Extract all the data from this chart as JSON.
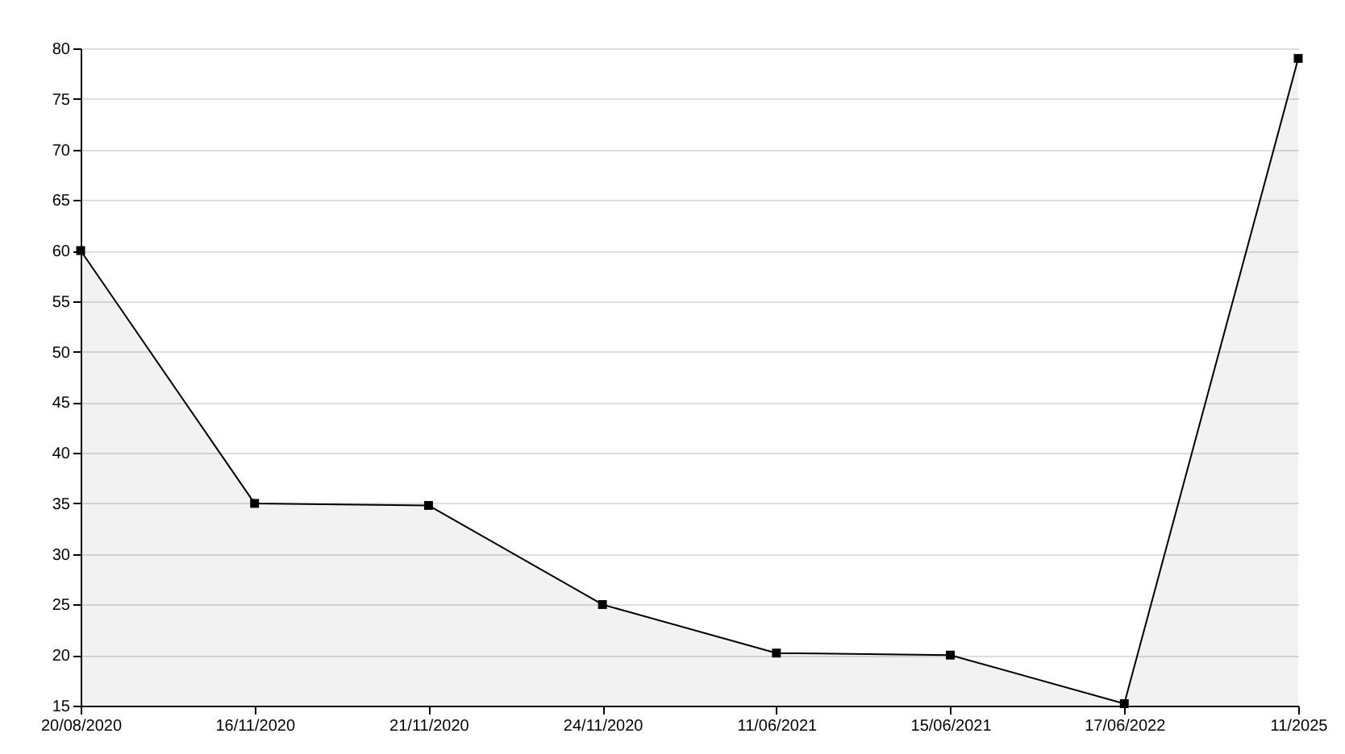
{
  "chart_data": {
    "type": "area",
    "categories": [
      "20/08/2020",
      "16/11/2020",
      "21/11/2020",
      "24/11/2020",
      "11/06/2021",
      "15/06/2021",
      "17/06/2022",
      "11/2025"
    ],
    "series": [
      {
        "color": "#000000",
        "values": [
          60,
          35,
          34.8,
          25,
          20.2,
          20,
          15.2,
          79
        ]
      }
    ],
    "ylim": [
      15,
      80
    ],
    "yticks": [
      15,
      20,
      25,
      30,
      35,
      40,
      45,
      50,
      55,
      60,
      65,
      70,
      75,
      80
    ],
    "grid": "y",
    "marker": "square"
  }
}
